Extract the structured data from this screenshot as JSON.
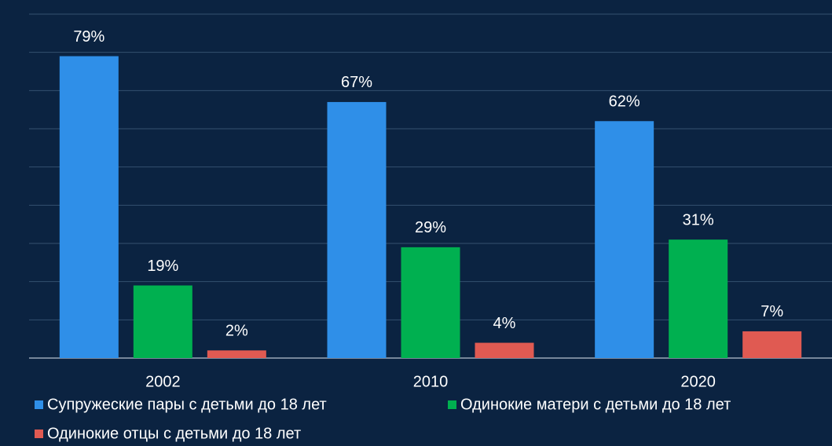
{
  "chart_data": {
    "type": "bar",
    "categories": [
      "2002",
      "2010",
      "2020"
    ],
    "series": [
      {
        "name": "Супружеские пары с детьми до 18 лет",
        "color": "#2f8fe8",
        "values": [
          79,
          67,
          62
        ],
        "value_labels": [
          "79%",
          "67%",
          "62%"
        ]
      },
      {
        "name": "Одинокие матери с детьми до 18 лет",
        "color": "#00b050",
        "values": [
          19,
          29,
          31
        ],
        "value_labels": [
          "19%",
          "29%",
          "31%"
        ]
      },
      {
        "name": "Одинокие отцы с детьми до 18 лет",
        "color": "#e05a52",
        "values": [
          2,
          4,
          7
        ],
        "value_labels": [
          "2%",
          "4%",
          "7%"
        ]
      }
    ],
    "ylim": [
      0,
      90
    ],
    "yticks": [
      0,
      10,
      20,
      30,
      40,
      50,
      60,
      70,
      80,
      90
    ],
    "grid": true,
    "legend": "bottom"
  }
}
